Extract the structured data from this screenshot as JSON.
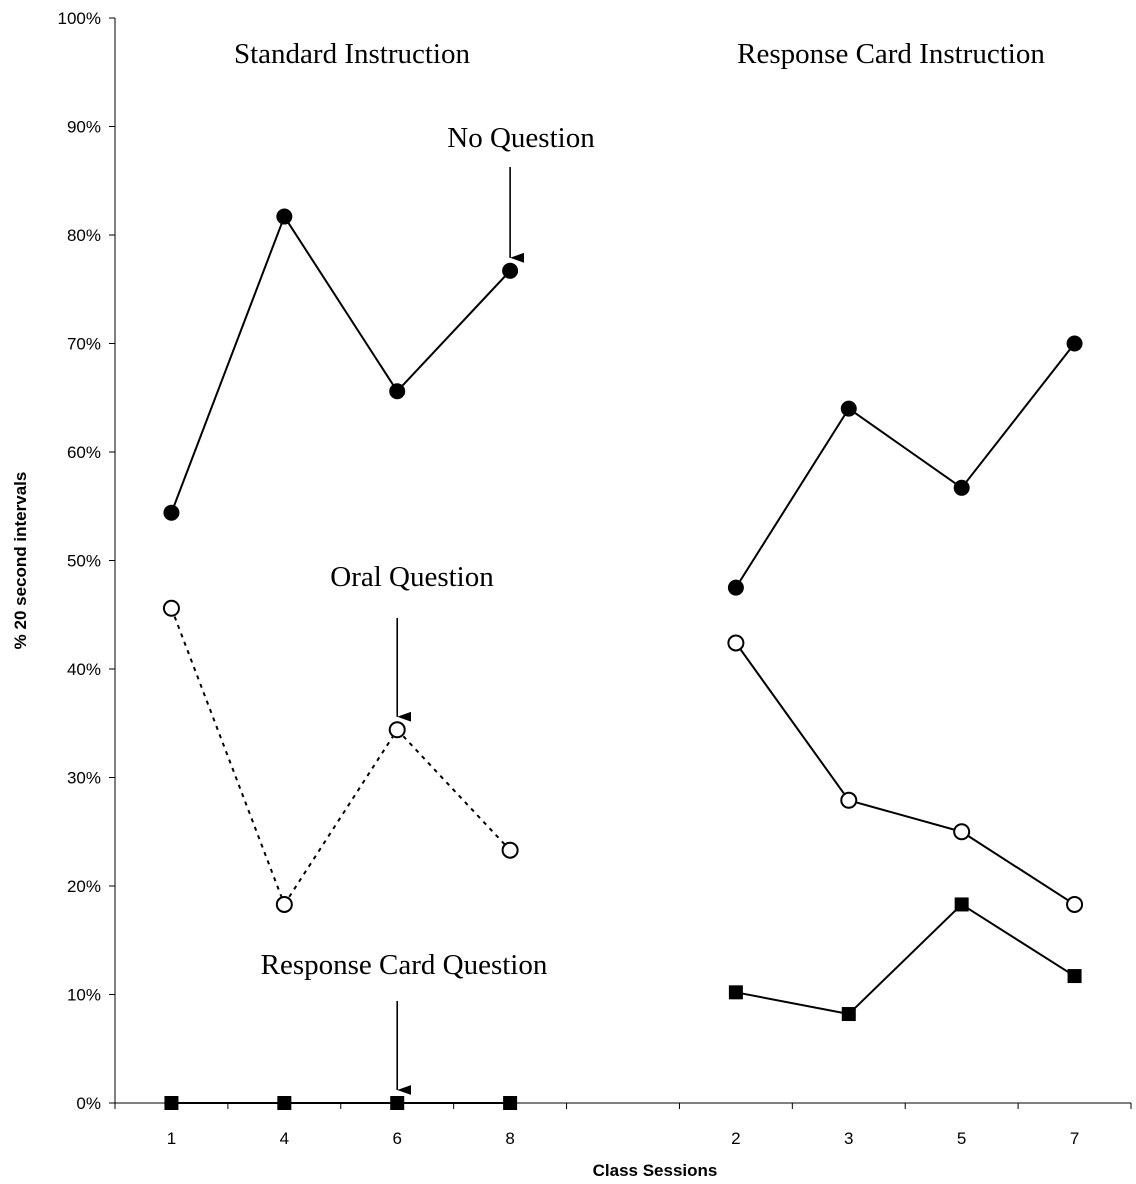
{
  "chart_data": {
    "type": "line",
    "xlabel": "Class Sessions",
    "ylabel": "% 20 second intervals",
    "ylim": [
      0,
      100
    ],
    "yticks": [
      "0%",
      "10%",
      "20%",
      "30%",
      "40%",
      "50%",
      "60%",
      "70%",
      "80%",
      "90%",
      "100%"
    ],
    "categories": [
      "1",
      "4",
      "6",
      "8",
      "",
      "2",
      "3",
      "5",
      "7"
    ],
    "grid": false,
    "legend": "none",
    "series": [
      {
        "marker": "filled-circle",
        "line": "solid",
        "values": [
          54.4,
          81.7,
          65.6,
          76.7,
          null,
          47.5,
          64.0,
          56.7,
          70.0
        ]
      },
      {
        "marker": "open-circle",
        "line": "dotted",
        "values": [
          45.6,
          18.3,
          34.4,
          23.3,
          null,
          null,
          null,
          null,
          null
        ]
      },
      {
        "marker": "open-circle",
        "line": "solid",
        "values": [
          null,
          null,
          null,
          null,
          null,
          42.4,
          27.9,
          25.0,
          18.3
        ]
      },
      {
        "marker": "filled-square",
        "line": "solid",
        "values": [
          0,
          0,
          0,
          0,
          null,
          10.2,
          8.2,
          18.3,
          11.7
        ]
      }
    ],
    "annotations": [
      {
        "id": "standard",
        "text": "Standard Instruction"
      },
      {
        "id": "response_card",
        "text": "Response Card Instruction"
      },
      {
        "id": "no_question",
        "text": "No Question",
        "arrow_to": {
          "category": 3,
          "value": 76.7
        }
      },
      {
        "id": "oral_question",
        "text": "Oral Question",
        "arrow_to": {
          "category": 2,
          "value": 34.4
        }
      },
      {
        "id": "response_card_question",
        "text": "Response Card Question",
        "arrow_to": {
          "category": 2,
          "value": 0
        }
      }
    ]
  }
}
